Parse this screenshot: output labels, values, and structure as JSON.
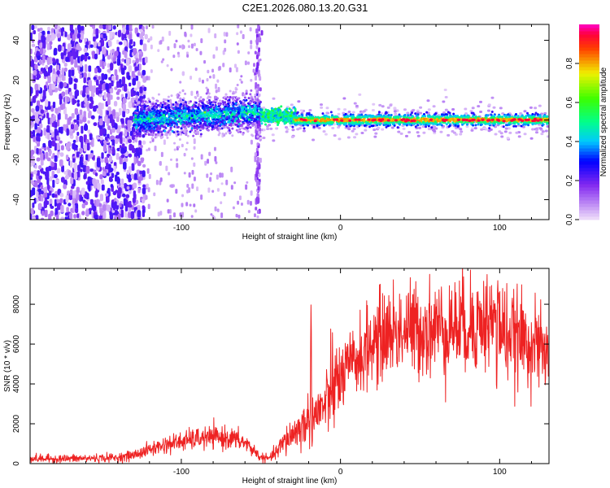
{
  "figure": {
    "title": "C2E1.2026.080.13.20.G31"
  },
  "chart_data": [
    {
      "type": "heatmap",
      "title": "C2E1.2026.080.13.20.G31",
      "xlabel": "Height of straight line (km)",
      "ylabel": "Frequency (Hz)",
      "xlim": [
        -195,
        131
      ],
      "ylim": [
        -50,
        48
      ],
      "xticks": [
        -100,
        0,
        100
      ],
      "yticks": [
        -40,
        -20,
        0,
        20,
        40
      ],
      "colorbar": {
        "label": "Normalized spectral amplitude",
        "range": [
          0,
          1
        ],
        "ticks": [
          0.0,
          0.2,
          0.4,
          0.6,
          0.8
        ]
      },
      "regions": [
        {
          "description": "scattered noise",
          "x_range": [
            -195,
            -122
          ],
          "freq_range": [
            -50,
            48
          ],
          "amplitude": 0.15
        },
        {
          "description": "broad signal",
          "x_range": [
            -130,
            -50
          ],
          "freq_center": 0,
          "freq_spread": 8,
          "amplitude": 0.4
        },
        {
          "description": "narrow carrier",
          "x_range": [
            -30,
            131
          ],
          "freq_center": 0,
          "freq_spread": 1,
          "amplitude": 0.95
        }
      ]
    },
    {
      "type": "line",
      "xlabel": "Height of straight line (km)",
      "ylabel": "SNR (10 * v/v)",
      "xlim": [
        -195,
        131
      ],
      "ylim": [
        0,
        9800
      ],
      "xticks": [
        -100,
        0,
        100
      ],
      "yticks": [
        0,
        2000,
        4000,
        6000,
        8000
      ],
      "color": "#ee2222",
      "series": [
        {
          "name": "SNR",
          "x": [
            -195,
            -180,
            -160,
            -140,
            -130,
            -120,
            -110,
            -100,
            -90,
            -80,
            -70,
            -60,
            -55,
            -50,
            -45,
            -40,
            -35,
            -30,
            -25,
            -20,
            -15,
            -10,
            -5,
            0,
            10,
            20,
            30,
            40,
            50,
            60,
            70,
            80,
            90,
            95,
            98,
            100,
            105,
            110,
            120,
            131
          ],
          "values": [
            250,
            240,
            260,
            300,
            420,
            700,
            950,
            1100,
            1250,
            1300,
            1300,
            1050,
            700,
            300,
            250,
            600,
            1100,
            1500,
            1800,
            2200,
            2500,
            2900,
            3500,
            4300,
            5200,
            6000,
            6600,
            6700,
            6750,
            6800,
            6900,
            7000,
            7100,
            7200,
            7100,
            6900,
            6500,
            6300,
            6100,
            5300
          ]
        }
      ]
    }
  ]
}
